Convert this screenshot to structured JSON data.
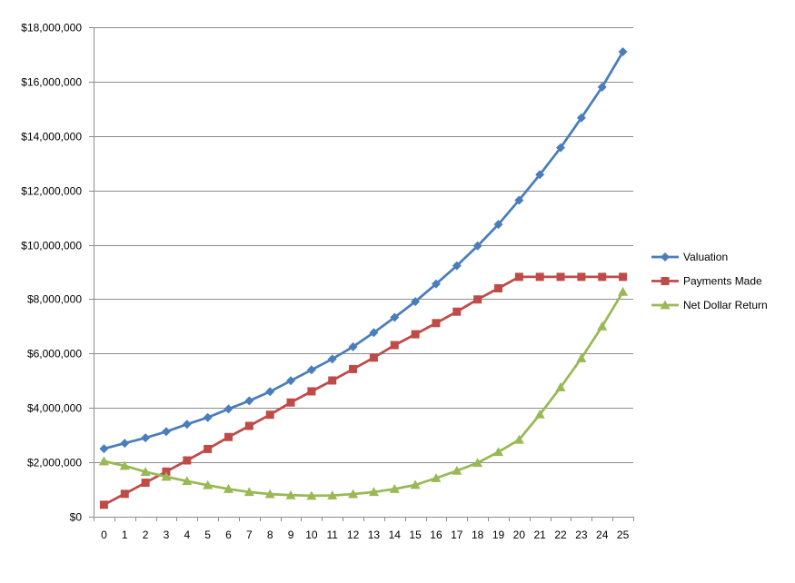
{
  "chart_data": {
    "type": "line",
    "title": "",
    "xlabel": "",
    "ylabel": "",
    "x": [
      0,
      1,
      2,
      3,
      4,
      5,
      6,
      7,
      8,
      9,
      10,
      11,
      12,
      13,
      14,
      15,
      16,
      17,
      18,
      19,
      20,
      21,
      22,
      23,
      24,
      25
    ],
    "y_ticks": [
      "$0",
      "$2,000,000",
      "$4,000,000",
      "$6,000,000",
      "$8,000,000",
      "$10,000,000",
      "$12,000,000",
      "$14,000,000",
      "$16,000,000",
      "$18,000,000"
    ],
    "ylim": [
      0,
      18000000
    ],
    "grid": "horizontal",
    "legend_position": "right",
    "series": [
      {
        "name": "Valuation",
        "color": "#4a7ebb",
        "marker": "diamond",
        "values": [
          2500000,
          2700000,
          2900000,
          3130000,
          3400000,
          3650000,
          3960000,
          4260000,
          4600000,
          5000000,
          5400000,
          5800000,
          6250000,
          6770000,
          7330000,
          7910000,
          8560000,
          9230000,
          9960000,
          10750000,
          11640000,
          12580000,
          13570000,
          14670000,
          15800000,
          17100000
        ]
      },
      {
        "name": "Payments Made",
        "color": "#be4b48",
        "marker": "square",
        "values": [
          440000,
          840000,
          1250000,
          1660000,
          2070000,
          2490000,
          2930000,
          3340000,
          3750000,
          4200000,
          4610000,
          5010000,
          5430000,
          5850000,
          6310000,
          6710000,
          7120000,
          7540000,
          7990000,
          8400000,
          8820000,
          8820000,
          8820000,
          8820000,
          8820000,
          8820000
        ]
      },
      {
        "name": "Net Dollar Return",
        "color": "#98b954",
        "marker": "triangle",
        "values": [
          2040000,
          1870000,
          1650000,
          1470000,
          1310000,
          1160000,
          1020000,
          910000,
          830000,
          790000,
          770000,
          780000,
          830000,
          910000,
          1020000,
          1170000,
          1420000,
          1690000,
          1980000,
          2380000,
          2830000,
          3760000,
          4760000,
          5830000,
          7000000,
          8270000
        ]
      }
    ]
  }
}
